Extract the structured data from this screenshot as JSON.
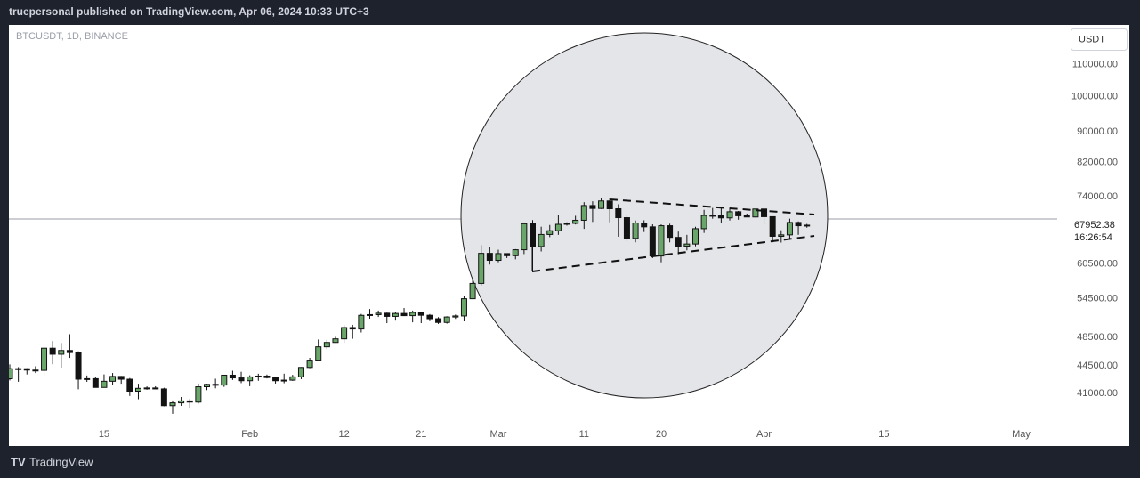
{
  "header": {
    "text": "truepersonal published on TradingView.com, Apr 06, 2024 10:33 UTC+3"
  },
  "footer": {
    "brand": "TradingView"
  },
  "chart_data": {
    "type": "candlestick",
    "title": "BTCUSDT, 1D, BINANCE",
    "currency": "USDT",
    "countdown": "16:26:54",
    "up_color": "#6aa56a",
    "down_color": "#131313",
    "log_scale": true,
    "grid": false,
    "ylim": [
      35100,
      124000
    ],
    "yticks": [
      {
        "value": 41000,
        "label": "41000.00"
      },
      {
        "value": 44500,
        "label": "44500.00"
      },
      {
        "value": 48500,
        "label": "48500.00"
      },
      {
        "value": 54500,
        "label": "54500.00"
      },
      {
        "value": 60500,
        "label": "60500.00"
      },
      {
        "value": 74000,
        "label": "74000.00"
      },
      {
        "value": 82000,
        "label": "82000.00"
      },
      {
        "value": 90000,
        "label": "90000.00"
      },
      {
        "value": 100000,
        "label": "100000.00"
      },
      {
        "value": 110000,
        "label": "110000.00"
      }
    ],
    "xlim": [
      "2024-01-04",
      "2024-05-05"
    ],
    "xticks": [
      {
        "value": "2024-01-15",
        "label": "15"
      },
      {
        "value": "2024-02-01",
        "label": "Feb"
      },
      {
        "value": "2024-02-12",
        "label": "12"
      },
      {
        "value": "2024-02-21",
        "label": "21"
      },
      {
        "value": "2024-03-01",
        "label": "Mar"
      },
      {
        "value": "2024-03-11",
        "label": "11"
      },
      {
        "value": "2024-03-20",
        "label": "20"
      },
      {
        "value": "2024-04-01",
        "label": "Apr"
      },
      {
        "value": "2024-04-15",
        "label": "15"
      },
      {
        "value": "2024-05-01",
        "label": "May"
      }
    ],
    "x": [
      "2024-01-04",
      "2024-01-05",
      "2024-01-06",
      "2024-01-07",
      "2024-01-08",
      "2024-01-09",
      "2024-01-10",
      "2024-01-11",
      "2024-01-12",
      "2024-01-13",
      "2024-01-14",
      "2024-01-15",
      "2024-01-16",
      "2024-01-17",
      "2024-01-18",
      "2024-01-19",
      "2024-01-20",
      "2024-01-21",
      "2024-01-22",
      "2024-01-23",
      "2024-01-24",
      "2024-01-25",
      "2024-01-26",
      "2024-01-27",
      "2024-01-28",
      "2024-01-29",
      "2024-01-30",
      "2024-01-31",
      "2024-02-01",
      "2024-02-02",
      "2024-02-03",
      "2024-02-04",
      "2024-02-05",
      "2024-02-06",
      "2024-02-07",
      "2024-02-08",
      "2024-02-09",
      "2024-02-10",
      "2024-02-11",
      "2024-02-12",
      "2024-02-13",
      "2024-02-14",
      "2024-02-15",
      "2024-02-16",
      "2024-02-17",
      "2024-02-18",
      "2024-02-19",
      "2024-02-20",
      "2024-02-21",
      "2024-02-22",
      "2024-02-23",
      "2024-02-24",
      "2024-02-25",
      "2024-02-26",
      "2024-02-27",
      "2024-02-28",
      "2024-02-29",
      "2024-03-01",
      "2024-03-02",
      "2024-03-03",
      "2024-03-04",
      "2024-03-05",
      "2024-03-06",
      "2024-03-07",
      "2024-03-08",
      "2024-03-09",
      "2024-03-10",
      "2024-03-11",
      "2024-03-12",
      "2024-03-13",
      "2024-03-14",
      "2024-03-15",
      "2024-03-16",
      "2024-03-17",
      "2024-03-18",
      "2024-03-19",
      "2024-03-20",
      "2024-03-21",
      "2024-03-22",
      "2024-03-23",
      "2024-03-24",
      "2024-03-25",
      "2024-03-26",
      "2024-03-27",
      "2024-03-28",
      "2024-03-29",
      "2024-03-30",
      "2024-03-31",
      "2024-04-01",
      "2024-04-02",
      "2024-04-03",
      "2024-04-04",
      "2024-04-05",
      "2024-04-06"
    ],
    "open": [
      42836,
      44151,
      44145,
      43968,
      43929,
      46951,
      46110,
      46633,
      46339,
      42782,
      42847,
      41732,
      42511,
      43137,
      42776,
      41262,
      41618,
      41665,
      41545,
      39507,
      39845,
      40077,
      39933,
      41816,
      42120,
      42031,
      43300,
      42946,
      42582,
      43075,
      43185,
      42992,
      42583,
      42658,
      43084,
      44318,
      45301,
      47147,
      47771,
      48293,
      49958,
      49743,
      51826,
      51938,
      52160,
      51663,
      52123,
      51780,
      52284,
      51838,
      51304,
      50731,
      51571,
      51733,
      54476,
      57037,
      62432,
      61130,
      62387,
      61987,
      63113,
      68245,
      63724,
      66074,
      66823,
      68124,
      68313,
      68955,
      72078,
      71452,
      73072,
      71388,
      69499,
      65300,
      68393,
      67609,
      61937,
      67840,
      65501,
      63796,
      64209,
      67234,
      69958,
      69987,
      69455,
      70744,
      69892,
      69645,
      71333,
      69702,
      65709,
      66000,
      68508,
      67837
    ],
    "high": [
      44729,
      44357,
      44214,
      44480,
      47248,
      47972,
      47695,
      48969,
      46515,
      43257,
      43079,
      43400,
      43578,
      43198,
      42930,
      42196,
      41866,
      41881,
      41689,
      40129,
      40555,
      40300,
      42225,
      42200,
      42842,
      43305,
      43882,
      43744,
      43285,
      43488,
      43380,
      43119,
      43494,
      43345,
      44367,
      45614,
      48200,
      48170,
      48580,
      50334,
      50368,
      52043,
      52817,
      52574,
      52250,
      52400,
      52985,
      52573,
      52366,
      52020,
      51550,
      51682,
      51950,
      54938,
      57588,
      64000,
      63676,
      63114,
      62433,
      63231,
      68499,
      69000,
      67637,
      67985,
      70136,
      68541,
      69887,
      72800,
      73000,
      73650,
      73777,
      72357,
      70043,
      68904,
      68956,
      68124,
      68100,
      68240,
      66649,
      65999,
      67628,
      71150,
      71561,
      71769,
      71552,
      70913,
      70355,
      71366,
      71342,
      69708,
      66914,
      69291,
      68725,
      68200
    ],
    "low": [
      42630,
      42450,
      43397,
      43572,
      43175,
      44748,
      44300,
      45606,
      41500,
      42436,
      41720,
      41718,
      42050,
      42200,
      40683,
      40280,
      41446,
      41500,
      39431,
      38555,
      39484,
      39260,
      39767,
      41395,
      41620,
      41804,
      42683,
      42276,
      41884,
      42575,
      42880,
      42222,
      42258,
      42565,
      42789,
      44214,
      45243,
      46800,
      47721,
      47711,
      48300,
      49225,
      51310,
      51577,
      50625,
      51015,
      51715,
      50750,
      50625,
      50935,
      50500,
      50552,
      51279,
      50901,
      54450,
      56691,
      60364,
      60777,
      61561,
      61320,
      62300,
      59005,
      62786,
      65551,
      66000,
      67861,
      68094,
      67194,
      68620,
      71333,
      68555,
      65630,
      64780,
      64533,
      66566,
      61555,
      60775,
      64529,
      62260,
      63000,
      63772,
      66385,
      69280,
      68360,
      68903,
      69076,
      69601,
      69562,
      68110,
      64550,
      64493,
      65064,
      66011,
      67447
    ],
    "close": [
      44151,
      44145,
      43968,
      43929,
      46951,
      46110,
      46633,
      46339,
      42782,
      42847,
      41732,
      42511,
      43137,
      42776,
      41262,
      41618,
      41665,
      41545,
      39507,
      39845,
      40077,
      39933,
      41816,
      42120,
      42031,
      43300,
      42946,
      42582,
      43075,
      43185,
      42992,
      42583,
      42658,
      43084,
      44318,
      45301,
      47147,
      47771,
      48293,
      49958,
      49743,
      51826,
      51938,
      52160,
      51663,
      52123,
      51780,
      52284,
      51838,
      51304,
      50731,
      51571,
      51733,
      54476,
      57037,
      62432,
      61130,
      62387,
      61987,
      63113,
      68245,
      63724,
      66074,
      66823,
      68124,
      68313,
      68955,
      72078,
      71452,
      73072,
      71388,
      69499,
      65300,
      68393,
      67609,
      61937,
      67840,
      65501,
      63796,
      64209,
      67234,
      69958,
      69987,
      69455,
      70744,
      69892,
      69645,
      71333,
      69702,
      65709,
      66000,
      68508,
      67837,
      67952.38
    ]
  }
}
